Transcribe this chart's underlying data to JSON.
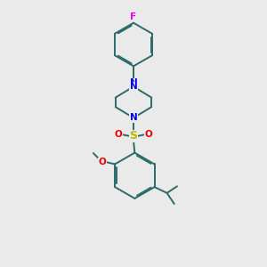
{
  "bg_color": "#eaeaea",
  "bond_color": "#2d6b6b",
  "N_color": "#0000ee",
  "O_color": "#ee0000",
  "F_color": "#ee00ee",
  "S_color": "#bbbb00",
  "lw": 1.4,
  "dbo": 0.055,
  "xlim": [
    0,
    10
  ],
  "ylim": [
    0,
    11
  ],
  "figsize": [
    3.0,
    3.0
  ],
  "dpi": 100
}
